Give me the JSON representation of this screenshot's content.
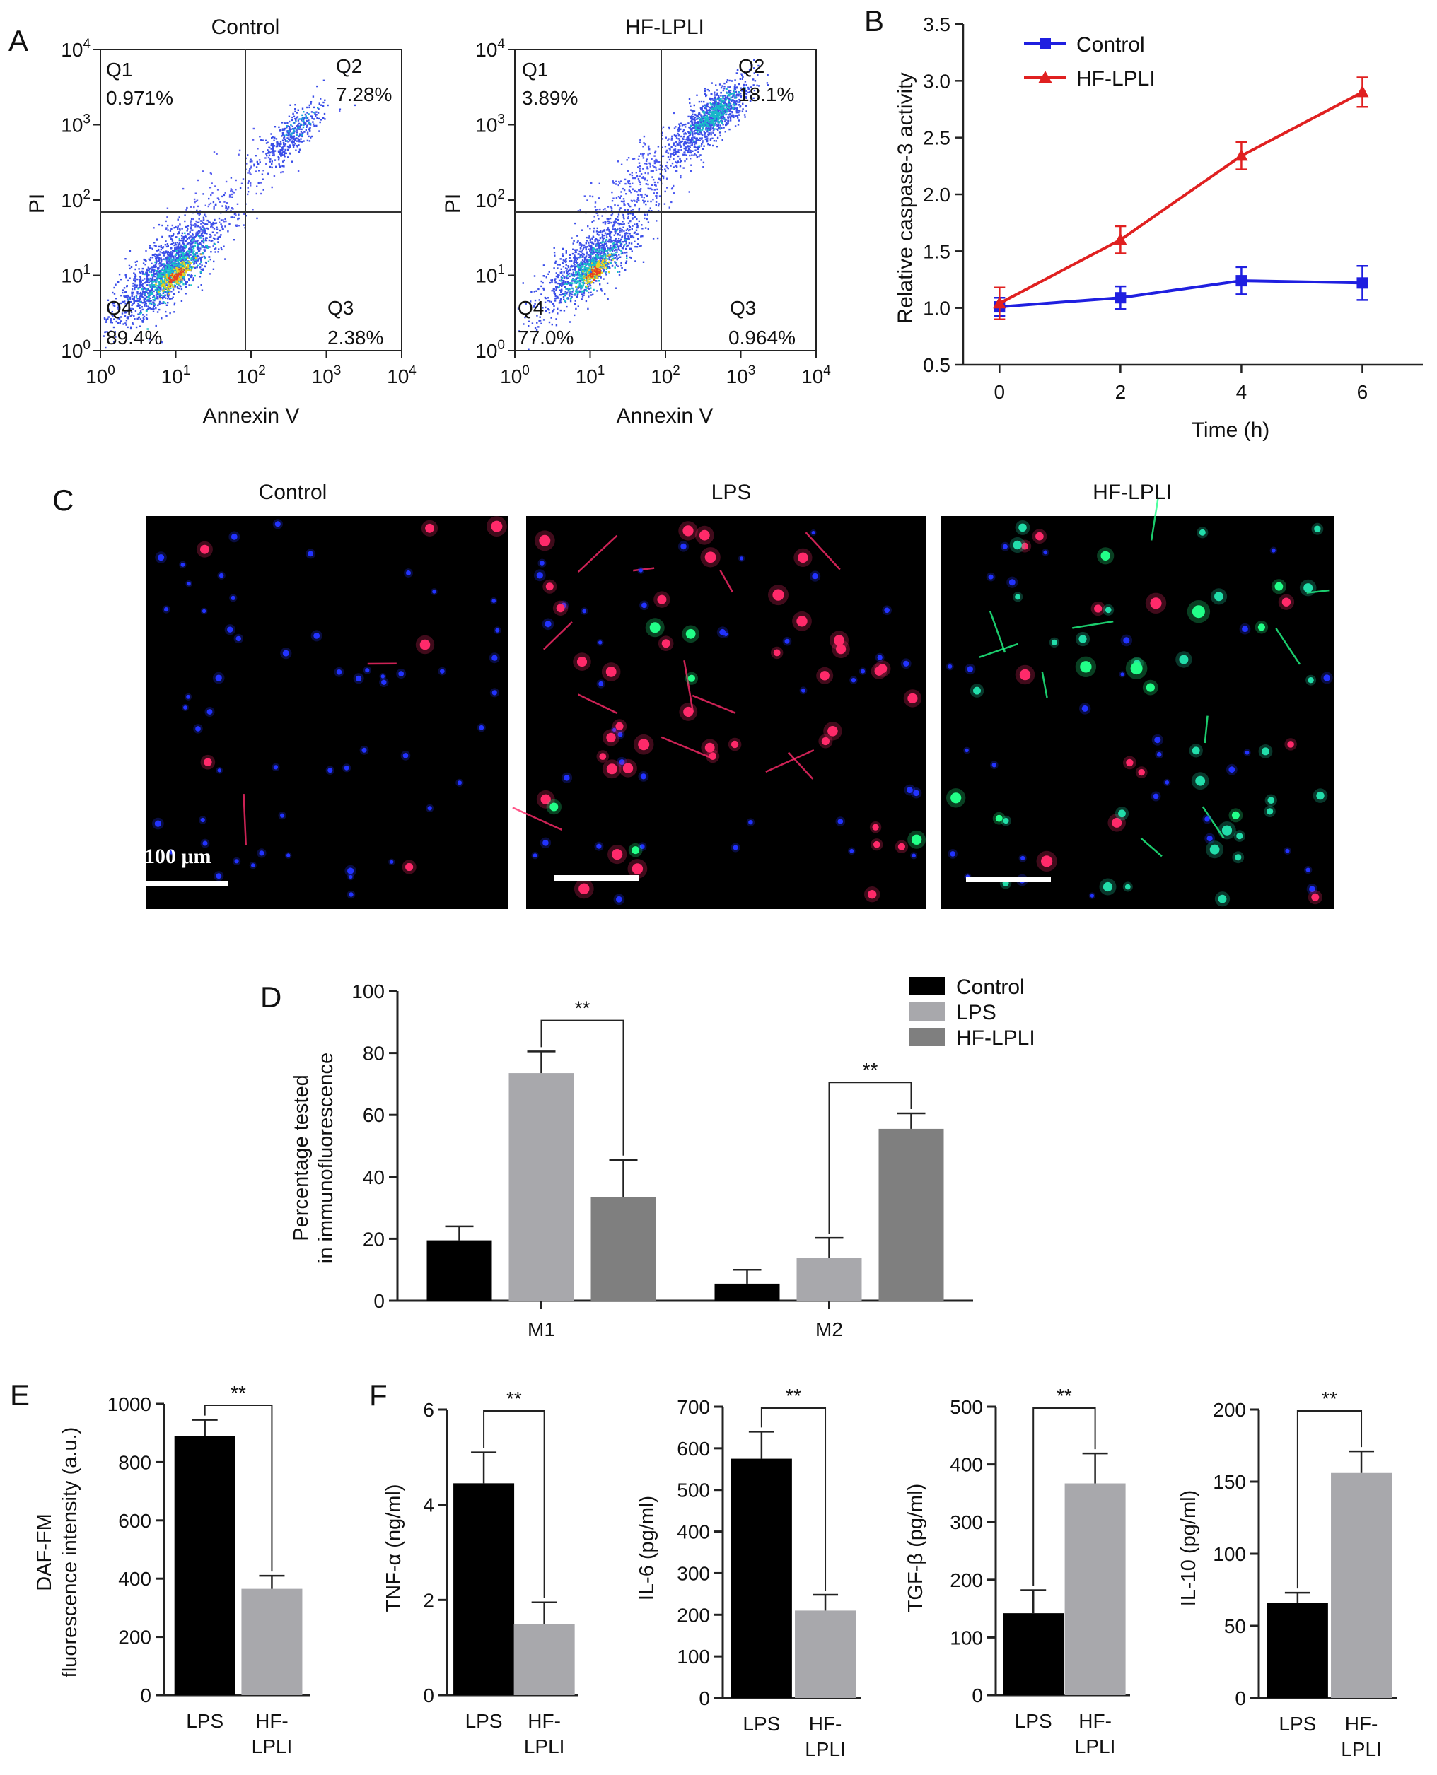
{
  "panel_letters": {
    "a": "A",
    "b": "B",
    "c": "C",
    "d": "D",
    "e": "E",
    "f": "F"
  },
  "chart_data": [
    {
      "id": "A_control",
      "type": "scatter",
      "title": "Control",
      "xlabel": "Annexin V",
      "ylabel": "PI",
      "scale": "log",
      "xlim": [
        1,
        10000
      ],
      "ylim": [
        1,
        10000
      ],
      "ticks_exp": [
        "0",
        "1",
        "2",
        "3",
        "4"
      ],
      "tick_base": "10",
      "quadrants": [
        {
          "name": "Q1",
          "value": "0.971%"
        },
        {
          "name": "Q2",
          "value": "7.28%"
        },
        {
          "name": "Q3",
          "value": "2.38%"
        },
        {
          "name": "Q4",
          "value": "89.4%"
        }
      ]
    },
    {
      "id": "A_hflpli",
      "type": "scatter",
      "title": "HF-LPLI",
      "xlabel": "Annexin V",
      "ylabel": "PI",
      "scale": "log",
      "xlim": [
        1,
        10000
      ],
      "ylim": [
        1,
        10000
      ],
      "ticks_exp": [
        "0",
        "1",
        "2",
        "3",
        "4"
      ],
      "tick_base": "10",
      "quadrants": [
        {
          "name": "Q1",
          "value": "3.89%"
        },
        {
          "name": "Q2",
          "value": "18.1%"
        },
        {
          "name": "Q3",
          "value": "0.964%"
        },
        {
          "name": "Q4",
          "value": "77.0%"
        }
      ]
    },
    {
      "id": "B",
      "type": "line",
      "xlabel": "Time (h)",
      "ylabel": "Relative caspase-3 activity",
      "x": [
        0,
        2,
        4,
        6
      ],
      "xlim": [
        -0.6,
        7
      ],
      "ylim": [
        0.5,
        3.5
      ],
      "xticks": [
        "0",
        "2",
        "4",
        "6"
      ],
      "yticks": [
        "0.5",
        "1.0",
        "1.5",
        "2.0",
        "2.5",
        "3.0",
        "3.5"
      ],
      "series": [
        {
          "name": "Control",
          "color": "#1f1fe0",
          "marker": "square",
          "values": [
            1.01,
            1.09,
            1.24,
            1.22
          ],
          "errors": [
            0.08,
            0.1,
            0.12,
            0.15
          ]
        },
        {
          "name": "HF-LPLI",
          "color": "#e02020",
          "marker": "triangle",
          "values": [
            1.04,
            1.6,
            2.34,
            2.9
          ],
          "errors": [
            0.14,
            0.12,
            0.12,
            0.13
          ]
        }
      ]
    },
    {
      "id": "D",
      "type": "bar",
      "ylabel_lines": [
        "Percentage tested",
        "in immunofluorescence"
      ],
      "categories": [
        "M1",
        "M2"
      ],
      "ylim": [
        0,
        100
      ],
      "yticks": [
        "0",
        "20",
        "40",
        "60",
        "80",
        "100"
      ],
      "series": [
        {
          "name": "Control",
          "color": "#000000",
          "values": [
            19.5,
            5.5
          ],
          "errors": [
            4.5,
            4.5
          ]
        },
        {
          "name": "LPS",
          "color": "#a8a8ac",
          "values": [
            73.5,
            13.8
          ],
          "errors": [
            7,
            6.5
          ]
        },
        {
          "name": "HF-LPLI",
          "color": "#7f7f7f",
          "values": [
            33.5,
            55.5
          ],
          "errors": [
            12,
            5
          ]
        }
      ],
      "significance": [
        {
          "label": "**",
          "category": "M1",
          "from": "LPS",
          "to": "HF-LPLI"
        },
        {
          "label": "**",
          "category": "M2",
          "from": "LPS",
          "to": "HF-LPLI"
        }
      ]
    },
    {
      "id": "E",
      "type": "bar",
      "ylabel_lines": [
        "DAF-FM",
        "fluorescence intensity (a.u.)"
      ],
      "categories": [
        [
          "LPS"
        ],
        [
          "HF-",
          "LPLI"
        ]
      ],
      "colors": [
        "#000000",
        "#a8a8ac"
      ],
      "values": [
        890,
        365
      ],
      "errors": [
        55,
        45
      ],
      "ylim": [
        0,
        1000
      ],
      "yticks": [
        "0",
        "200",
        "400",
        "600",
        "800",
        "1000"
      ],
      "significance": "**"
    },
    {
      "id": "F_tnf",
      "type": "bar",
      "ylabel": "TNF-α (ng/ml)",
      "categories": [
        [
          "LPS"
        ],
        [
          "HF-",
          "LPLI"
        ]
      ],
      "colors": [
        "#000000",
        "#a8a8ac"
      ],
      "values": [
        4.45,
        1.5
      ],
      "errors": [
        0.65,
        0.45
      ],
      "ylim": [
        0,
        6
      ],
      "yticks": [
        "0",
        "2",
        "4",
        "6"
      ],
      "significance": "**"
    },
    {
      "id": "F_il6",
      "type": "bar",
      "ylabel": "IL-6 (pg/ml)",
      "categories": [
        [
          "LPS"
        ],
        [
          "HF-",
          "LPLI"
        ]
      ],
      "colors": [
        "#000000",
        "#a8a8ac"
      ],
      "values": [
        575,
        210
      ],
      "errors": [
        65,
        38
      ],
      "ylim": [
        0,
        700
      ],
      "yticks": [
        "0",
        "100",
        "200",
        "300",
        "400",
        "500",
        "600",
        "700"
      ],
      "significance": "**"
    },
    {
      "id": "F_tgf",
      "type": "bar",
      "ylabel": "TGF-β (pg/ml)",
      "categories": [
        [
          "LPS"
        ],
        [
          "HF-",
          "LPLI"
        ]
      ],
      "colors": [
        "#000000",
        "#a8a8ac"
      ],
      "values": [
        142,
        367
      ],
      "errors": [
        40,
        52
      ],
      "ylim": [
        0,
        500
      ],
      "yticks": [
        "0",
        "100",
        "200",
        "300",
        "400",
        "500"
      ],
      "significance": "**"
    },
    {
      "id": "F_il10",
      "type": "bar",
      "ylabel": "IL-10 (pg/ml)",
      "categories": [
        [
          "LPS"
        ],
        [
          "HF-",
          "LPLI"
        ]
      ],
      "colors": [
        "#000000",
        "#a8a8ac"
      ],
      "values": [
        66,
        156
      ],
      "errors": [
        7,
        15
      ],
      "ylim": [
        0,
        200
      ],
      "yticks": [
        "0",
        "50",
        "100",
        "150",
        "200"
      ],
      "significance": "**"
    }
  ],
  "micrographs": {
    "titles": [
      "Control",
      "LPS",
      "HF-LPLI"
    ],
    "scale_label": "100 μm",
    "colors": {
      "blue": "#2233ff",
      "red": "#ff2a6a",
      "green": "#22ff88",
      "cyan": "#22ddaa"
    }
  }
}
